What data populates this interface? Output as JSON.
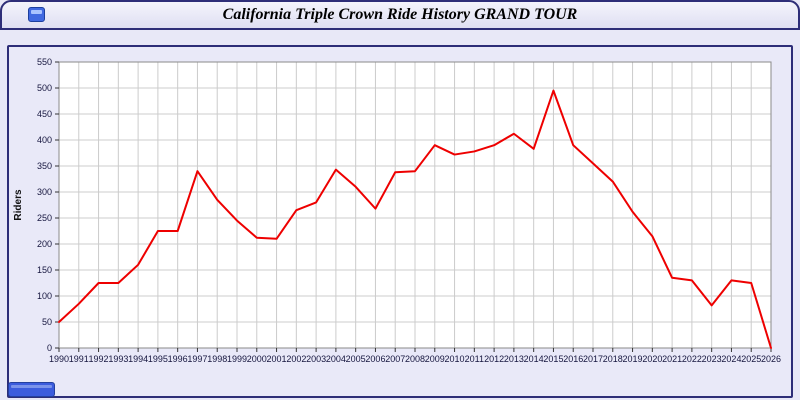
{
  "window": {
    "title": "California Triple Crown Ride History GRAND TOUR"
  },
  "colors": {
    "page_background": "#e8e8f7",
    "frame_border": "#2e2e78",
    "plot_background": "#ffffff",
    "plot_border": "#8a8a8a",
    "grid": "#cccccc",
    "tick_text": "#16163f",
    "tick_mark": "#333333",
    "axis_label_text": "#111111",
    "line": "#ee0000",
    "bottom_button": "#3c5cdd"
  },
  "chart_data": {
    "type": "line",
    "title": "California Triple Crown Ride History GRAND TOUR",
    "xlabel": "",
    "ylabel": "Riders",
    "legend": "none",
    "grid": true,
    "ylim": [
      0,
      550
    ],
    "ytick_step": 50,
    "line_color": "#ee0000",
    "years": [
      1990,
      1991,
      1992,
      1993,
      1994,
      1995,
      1996,
      1997,
      1998,
      1999,
      2000,
      2001,
      2002,
      2003,
      2004,
      2005,
      2006,
      2007,
      2008,
      2009,
      2010,
      2011,
      2012,
      2013,
      2014,
      2015,
      2016,
      2017,
      2018,
      2019,
      2020,
      2021,
      2022,
      2023,
      2024,
      2025,
      2026
    ],
    "series": [
      {
        "name": "Riders",
        "values": [
          50,
          85,
          125,
          125,
          160,
          225,
          225,
          340,
          285,
          245,
          212,
          210,
          265,
          280,
          343,
          310,
          268,
          338,
          340,
          390,
          372,
          378,
          390,
          412,
          383,
          495,
          390,
          355,
          320,
          262,
          215,
          135,
          130,
          82,
          130,
          125,
          0
        ]
      }
    ]
  }
}
